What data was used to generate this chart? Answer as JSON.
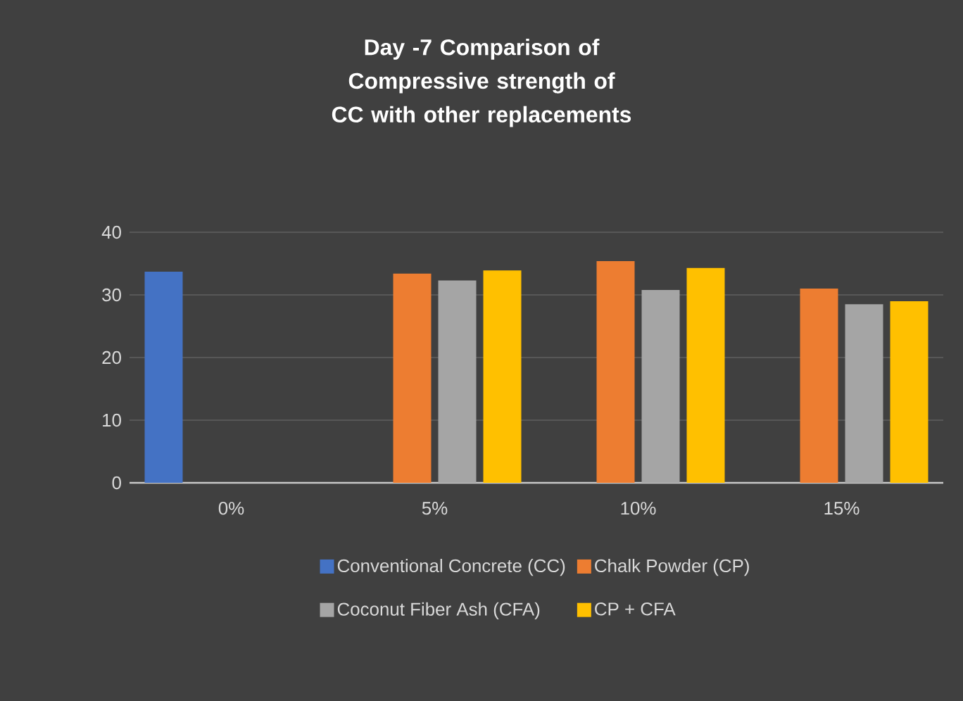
{
  "chart_data": {
    "type": "bar",
    "title": "Day -7 Comparison of Compressive strength of  CC with other replacements",
    "categories": [
      "0%",
      "5%",
      "10%",
      "15%"
    ],
    "series": [
      {
        "name": "Conventional Concrete (CC)",
        "color": "#4472c4",
        "values": [
          33.7,
          null,
          null,
          null
        ]
      },
      {
        "name": "Chalk Powder (CP)",
        "color": "#ed7d31",
        "values": [
          null,
          33.4,
          35.4,
          31.0
        ]
      },
      {
        "name": "Coconut Fiber Ash (CFA)",
        "color": "#a5a5a5",
        "values": [
          null,
          32.3,
          30.8,
          28.5
        ]
      },
      {
        "name": "CP + CFA",
        "color": "#ffc000",
        "values": [
          null,
          33.9,
          34.3,
          29.0
        ]
      }
    ],
    "ylim": [
      0,
      40
    ],
    "yticks": [
      0,
      10,
      20,
      30,
      40
    ],
    "grid": "y",
    "legend": "bottom"
  }
}
